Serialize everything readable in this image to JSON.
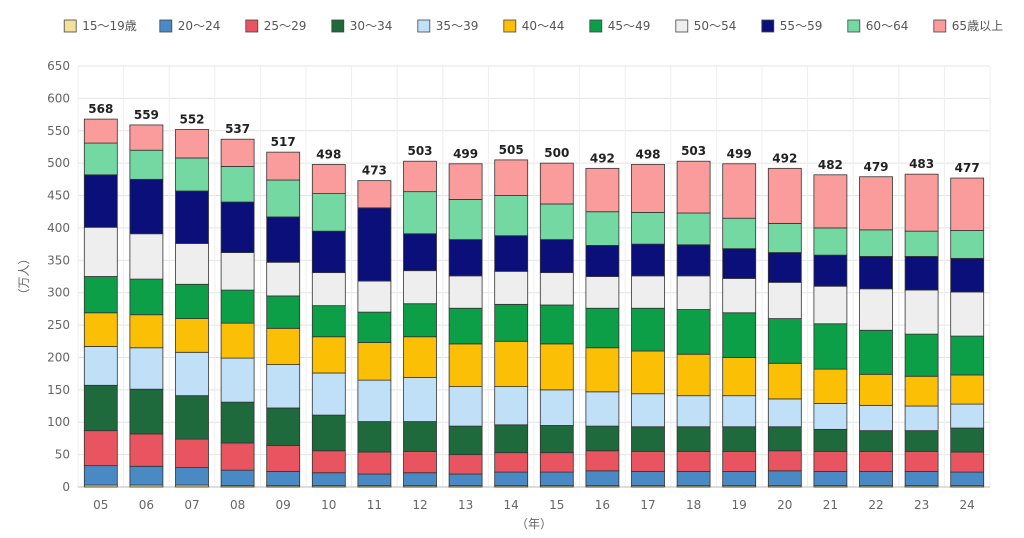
{
  "chart_data": {
    "type": "bar",
    "stacked": true,
    "title": "",
    "xlabel": "（年）",
    "ylabel": "（万人）",
    "ylim": [
      0,
      650
    ],
    "ytick_step": 50,
    "grid": true,
    "legend_position": "top",
    "categories": [
      "05",
      "06",
      "07",
      "08",
      "09",
      "10",
      "11",
      "12",
      "13",
      "14",
      "15",
      "16",
      "17",
      "18",
      "19",
      "20",
      "21",
      "22",
      "23",
      "24"
    ],
    "totals": [
      568,
      559,
      552,
      537,
      517,
      498,
      473,
      503,
      499,
      505,
      500,
      492,
      498,
      503,
      499,
      492,
      482,
      479,
      483,
      477
    ],
    "series": [
      {
        "name": "15〜19歳",
        "color": "#f2e19b",
        "values": [
          3,
          3,
          3,
          2,
          2,
          2,
          2,
          2,
          2,
          2,
          2,
          2,
          2,
          2,
          2,
          2,
          2,
          2,
          2,
          2
        ]
      },
      {
        "name": "20〜24",
        "color": "#4a8ac4",
        "values": [
          30,
          29,
          27,
          24,
          22,
          20,
          18,
          20,
          18,
          21,
          21,
          23,
          22,
          22,
          22,
          23,
          22,
          22,
          22,
          21
        ]
      },
      {
        "name": "25〜29",
        "color": "#e8545f",
        "values": [
          54,
          50,
          44,
          42,
          40,
          34,
          34,
          33,
          30,
          30,
          30,
          31,
          31,
          31,
          31,
          31,
          31,
          31,
          31,
          31
        ]
      },
      {
        "name": "30〜34",
        "color": "#1e6a3c",
        "values": [
          70,
          69,
          67,
          63,
          58,
          55,
          47,
          46,
          44,
          43,
          42,
          38,
          38,
          38,
          38,
          37,
          34,
          32,
          32,
          37
        ]
      },
      {
        "name": "35〜39",
        "color": "#bfe0f6",
        "values": [
          60,
          64,
          67,
          68,
          67,
          65,
          64,
          68,
          61,
          59,
          55,
          53,
          51,
          48,
          48,
          43,
          40,
          39,
          38,
          37
        ]
      },
      {
        "name": "40〜44",
        "color": "#fbbf05",
        "values": [
          52,
          51,
          52,
          54,
          56,
          56,
          58,
          63,
          66,
          70,
          71,
          68,
          66,
          64,
          59,
          55,
          53,
          48,
          46,
          45
        ]
      },
      {
        "name": "45〜49",
        "color": "#0d9e48",
        "values": [
          56,
          55,
          53,
          51,
          50,
          48,
          47,
          51,
          55,
          57,
          60,
          61,
          66,
          69,
          69,
          69,
          70,
          68,
          65,
          60
        ]
      },
      {
        "name": "50〜54",
        "color": "#eeeeee",
        "values": [
          76,
          70,
          63,
          58,
          52,
          51,
          48,
          51,
          50,
          51,
          50,
          49,
          50,
          52,
          53,
          56,
          58,
          64,
          68,
          68
        ]
      },
      {
        "name": "55〜59",
        "color": "#0a0f7a",
        "values": [
          81,
          84,
          81,
          78,
          70,
          64,
          113,
          57,
          56,
          55,
          51,
          48,
          49,
          48,
          46,
          46,
          48,
          50,
          52,
          52
        ]
      },
      {
        "name": "60〜64",
        "color": "#74d8a2",
        "values": [
          49,
          45,
          51,
          55,
          57,
          58,
          0,
          65,
          62,
          62,
          55,
          52,
          49,
          49,
          47,
          45,
          42,
          41,
          39,
          43
        ]
      },
      {
        "name": "65歳以上",
        "color": "#fb9c9c",
        "values": [
          37,
          39,
          44,
          42,
          43,
          45,
          42,
          47,
          55,
          55,
          63,
          67,
          74,
          80,
          84,
          85,
          82,
          82,
          88,
          81
        ]
      }
    ]
  }
}
